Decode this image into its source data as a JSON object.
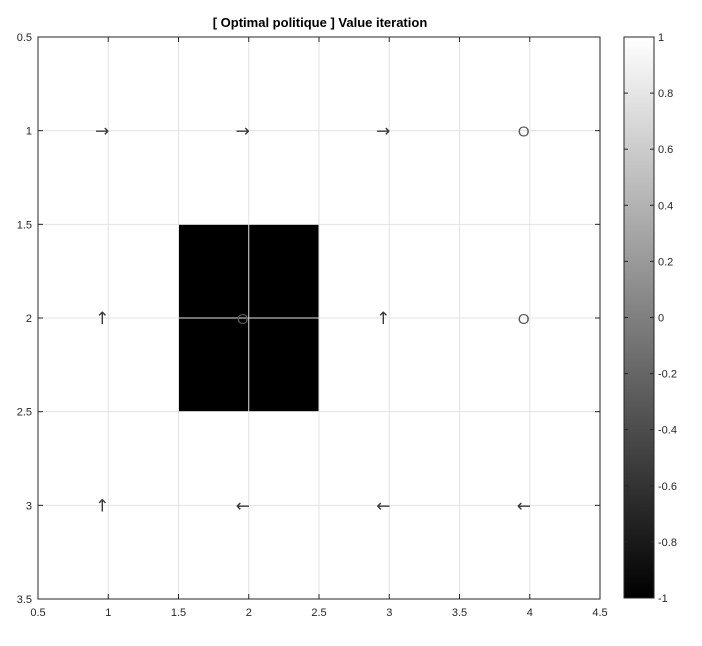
{
  "chart_data": {
    "type": "heatmap",
    "title": "[ Optimal politique ] Value iteration",
    "xlim": [
      0.5,
      4.5
    ],
    "ylim": [
      0.5,
      3.5
    ],
    "y_reversed": true,
    "x_ticks": [
      "0.5",
      "1",
      "1.5",
      "2",
      "2.5",
      "3",
      "3.5",
      "4",
      "4.5"
    ],
    "y_ticks": [
      "0.5",
      "1",
      "1.5",
      "2",
      "2.5",
      "3",
      "3.5"
    ],
    "grid": true,
    "colormap": "gray",
    "clim": [
      -1,
      1
    ],
    "colorbar_ticks": [
      "1",
      "0.8",
      "0.6",
      "0.4",
      "0.2",
      "0",
      "-0.2",
      "-0.4",
      "-0.6",
      "-0.8",
      "-1"
    ],
    "cell_values": [
      [
        1,
        1,
        1,
        1
      ],
      [
        1,
        -1,
        1,
        1
      ],
      [
        1,
        1,
        1,
        1
      ]
    ],
    "policy": [
      [
        "→",
        "→",
        "→",
        "O"
      ],
      [
        "↑",
        "O",
        "↑",
        "O"
      ],
      [
        "↑",
        "←",
        "←",
        "←"
      ]
    ],
    "colors": {
      "grid": "#e3e3e3",
      "axis": "#262626",
      "obstacle": "#000000"
    }
  }
}
